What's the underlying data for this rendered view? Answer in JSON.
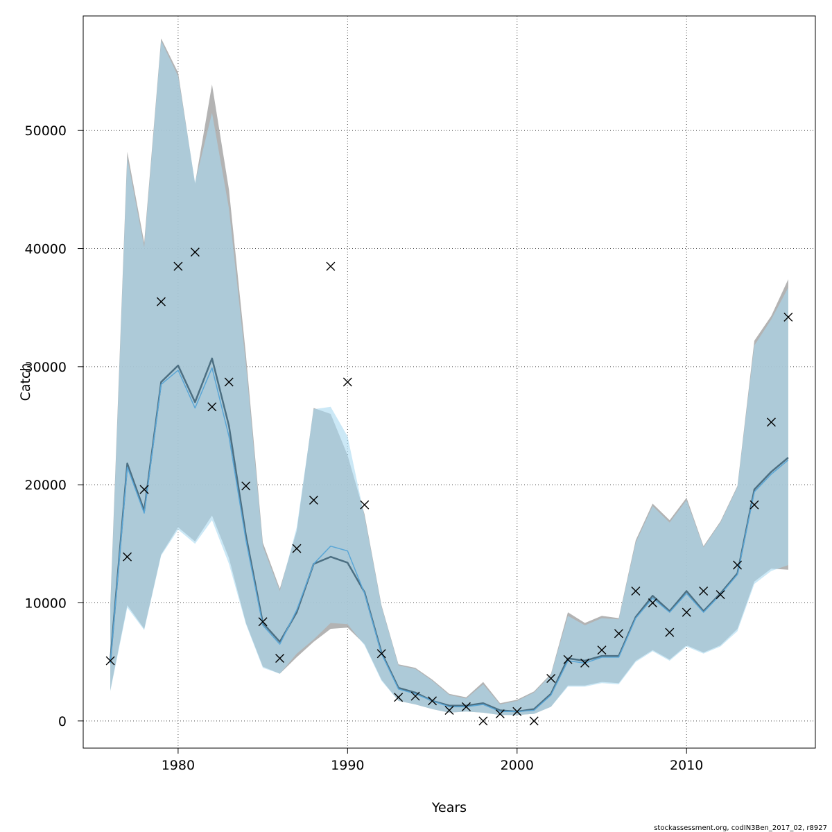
{
  "chart_data": {
    "type": "line",
    "xlabel": "Years",
    "ylabel": "Catch",
    "xlim": [
      1974.4,
      2017.6
    ],
    "ylim": [
      -2300,
      59700
    ],
    "x_ticks": [
      1980,
      1990,
      2000,
      2010
    ],
    "y_ticks": [
      0,
      10000,
      20000,
      30000,
      40000,
      50000
    ],
    "grid": true,
    "colors": {
      "band_primary": "#a6a6a6",
      "band_secondary": "#a9d8f0",
      "line_primary": "#4c6f82",
      "line_secondary": "#5aa6d6",
      "points": "#000000",
      "frame": "#000000",
      "grid": "#444444"
    },
    "x": [
      1976,
      1977,
      1978,
      1979,
      1980,
      1981,
      1982,
      1983,
      1984,
      1985,
      1986,
      1987,
      1988,
      1989,
      1990,
      1991,
      1992,
      1993,
      1994,
      1995,
      1996,
      1997,
      1998,
      1999,
      2000,
      2001,
      2002,
      2003,
      2004,
      2005,
      2006,
      2007,
      2008,
      2009,
      2010,
      2011,
      2012,
      2013,
      2014,
      2015,
      2016
    ],
    "series": [
      {
        "estimate": [
          5100,
          21800,
          17800,
          28700,
          30100,
          27000,
          30700,
          25000,
          15700,
          8300,
          6700,
          9200,
          13300,
          13900,
          13400,
          10900,
          5800,
          2800,
          2400,
          1700,
          1300,
          1300,
          1500,
          900,
          800,
          1000,
          2300,
          5300,
          5100,
          5500,
          5500,
          8800,
          10600,
          9300,
          11000,
          9300,
          10800,
          12500,
          19600,
          21100,
          22300
        ],
        "lower": [
          2600,
          9800,
          7800,
          14100,
          16400,
          15200,
          17400,
          13800,
          8300,
          4600,
          4000,
          5400,
          6700,
          7800,
          7900,
          6500,
          3500,
          1700,
          1400,
          1000,
          700,
          800,
          700,
          500,
          500,
          600,
          1200,
          3000,
          3000,
          3300,
          3200,
          5100,
          6000,
          5200,
          6400,
          5800,
          6400,
          7800,
          11800,
          12900,
          12800
        ],
        "upper": [
          9800,
          48200,
          40500,
          57800,
          54900,
          45500,
          53900,
          45000,
          31000,
          15100,
          11200,
          16100,
          26500,
          26000,
          22500,
          17500,
          9800,
          4800,
          4500,
          3500,
          2300,
          2000,
          3300,
          1500,
          1800,
          2500,
          4000,
          9200,
          8300,
          8900,
          8700,
          15300,
          18400,
          17000,
          18900,
          14800,
          16900,
          19900,
          32200,
          34300,
          37400
        ]
      },
      {
        "estimate": [
          4900,
          21500,
          17600,
          28500,
          29700,
          26500,
          29900,
          24100,
          15300,
          8100,
          6500,
          9400,
          13300,
          14800,
          14400,
          10800,
          5700,
          2700,
          2300,
          1700,
          1200,
          1200,
          1400,
          800,
          800,
          900,
          2200,
          5100,
          4900,
          5400,
          5400,
          8700,
          10400,
          9200,
          10800,
          9200,
          10700,
          12400,
          19400,
          20900,
          22100
        ],
        "lower": [
          2500,
          9600,
          7700,
          14000,
          16200,
          15000,
          17000,
          13300,
          8200,
          4500,
          4000,
          5700,
          6900,
          8300,
          8200,
          6400,
          3400,
          1700,
          1400,
          1000,
          700,
          800,
          700,
          500,
          500,
          600,
          1200,
          2900,
          2900,
          3200,
          3100,
          5000,
          5900,
          5100,
          6300,
          5700,
          6300,
          7600,
          11600,
          12700,
          13200
        ],
        "upper": [
          9400,
          47700,
          40100,
          57600,
          54600,
          45600,
          51500,
          43400,
          30200,
          14800,
          11000,
          16400,
          26400,
          26600,
          24100,
          17300,
          9700,
          4700,
          4400,
          3400,
          2200,
          1900,
          3100,
          1400,
          1700,
          2400,
          3900,
          8900,
          8100,
          8700,
          8600,
          15100,
          18200,
          16800,
          18700,
          14700,
          16800,
          19800,
          31800,
          34000,
          36700
        ]
      }
    ],
    "observed": [
      5100,
      13900,
      19600,
      35500,
      38500,
      39700,
      26600,
      28700,
      19900,
      8400,
      5300,
      14600,
      18700,
      38500,
      28700,
      18300,
      5700,
      2000,
      2100,
      1700,
      900,
      1200,
      0,
      600,
      800,
      0,
      3600,
      5200,
      4900,
      6000,
      7400,
      11000,
      10000,
      7500,
      9200,
      11000,
      10700,
      13200,
      18300,
      25300,
      34200
    ]
  },
  "footer": "stockassessment.org, codIN3Ben_2017_02, r8927"
}
